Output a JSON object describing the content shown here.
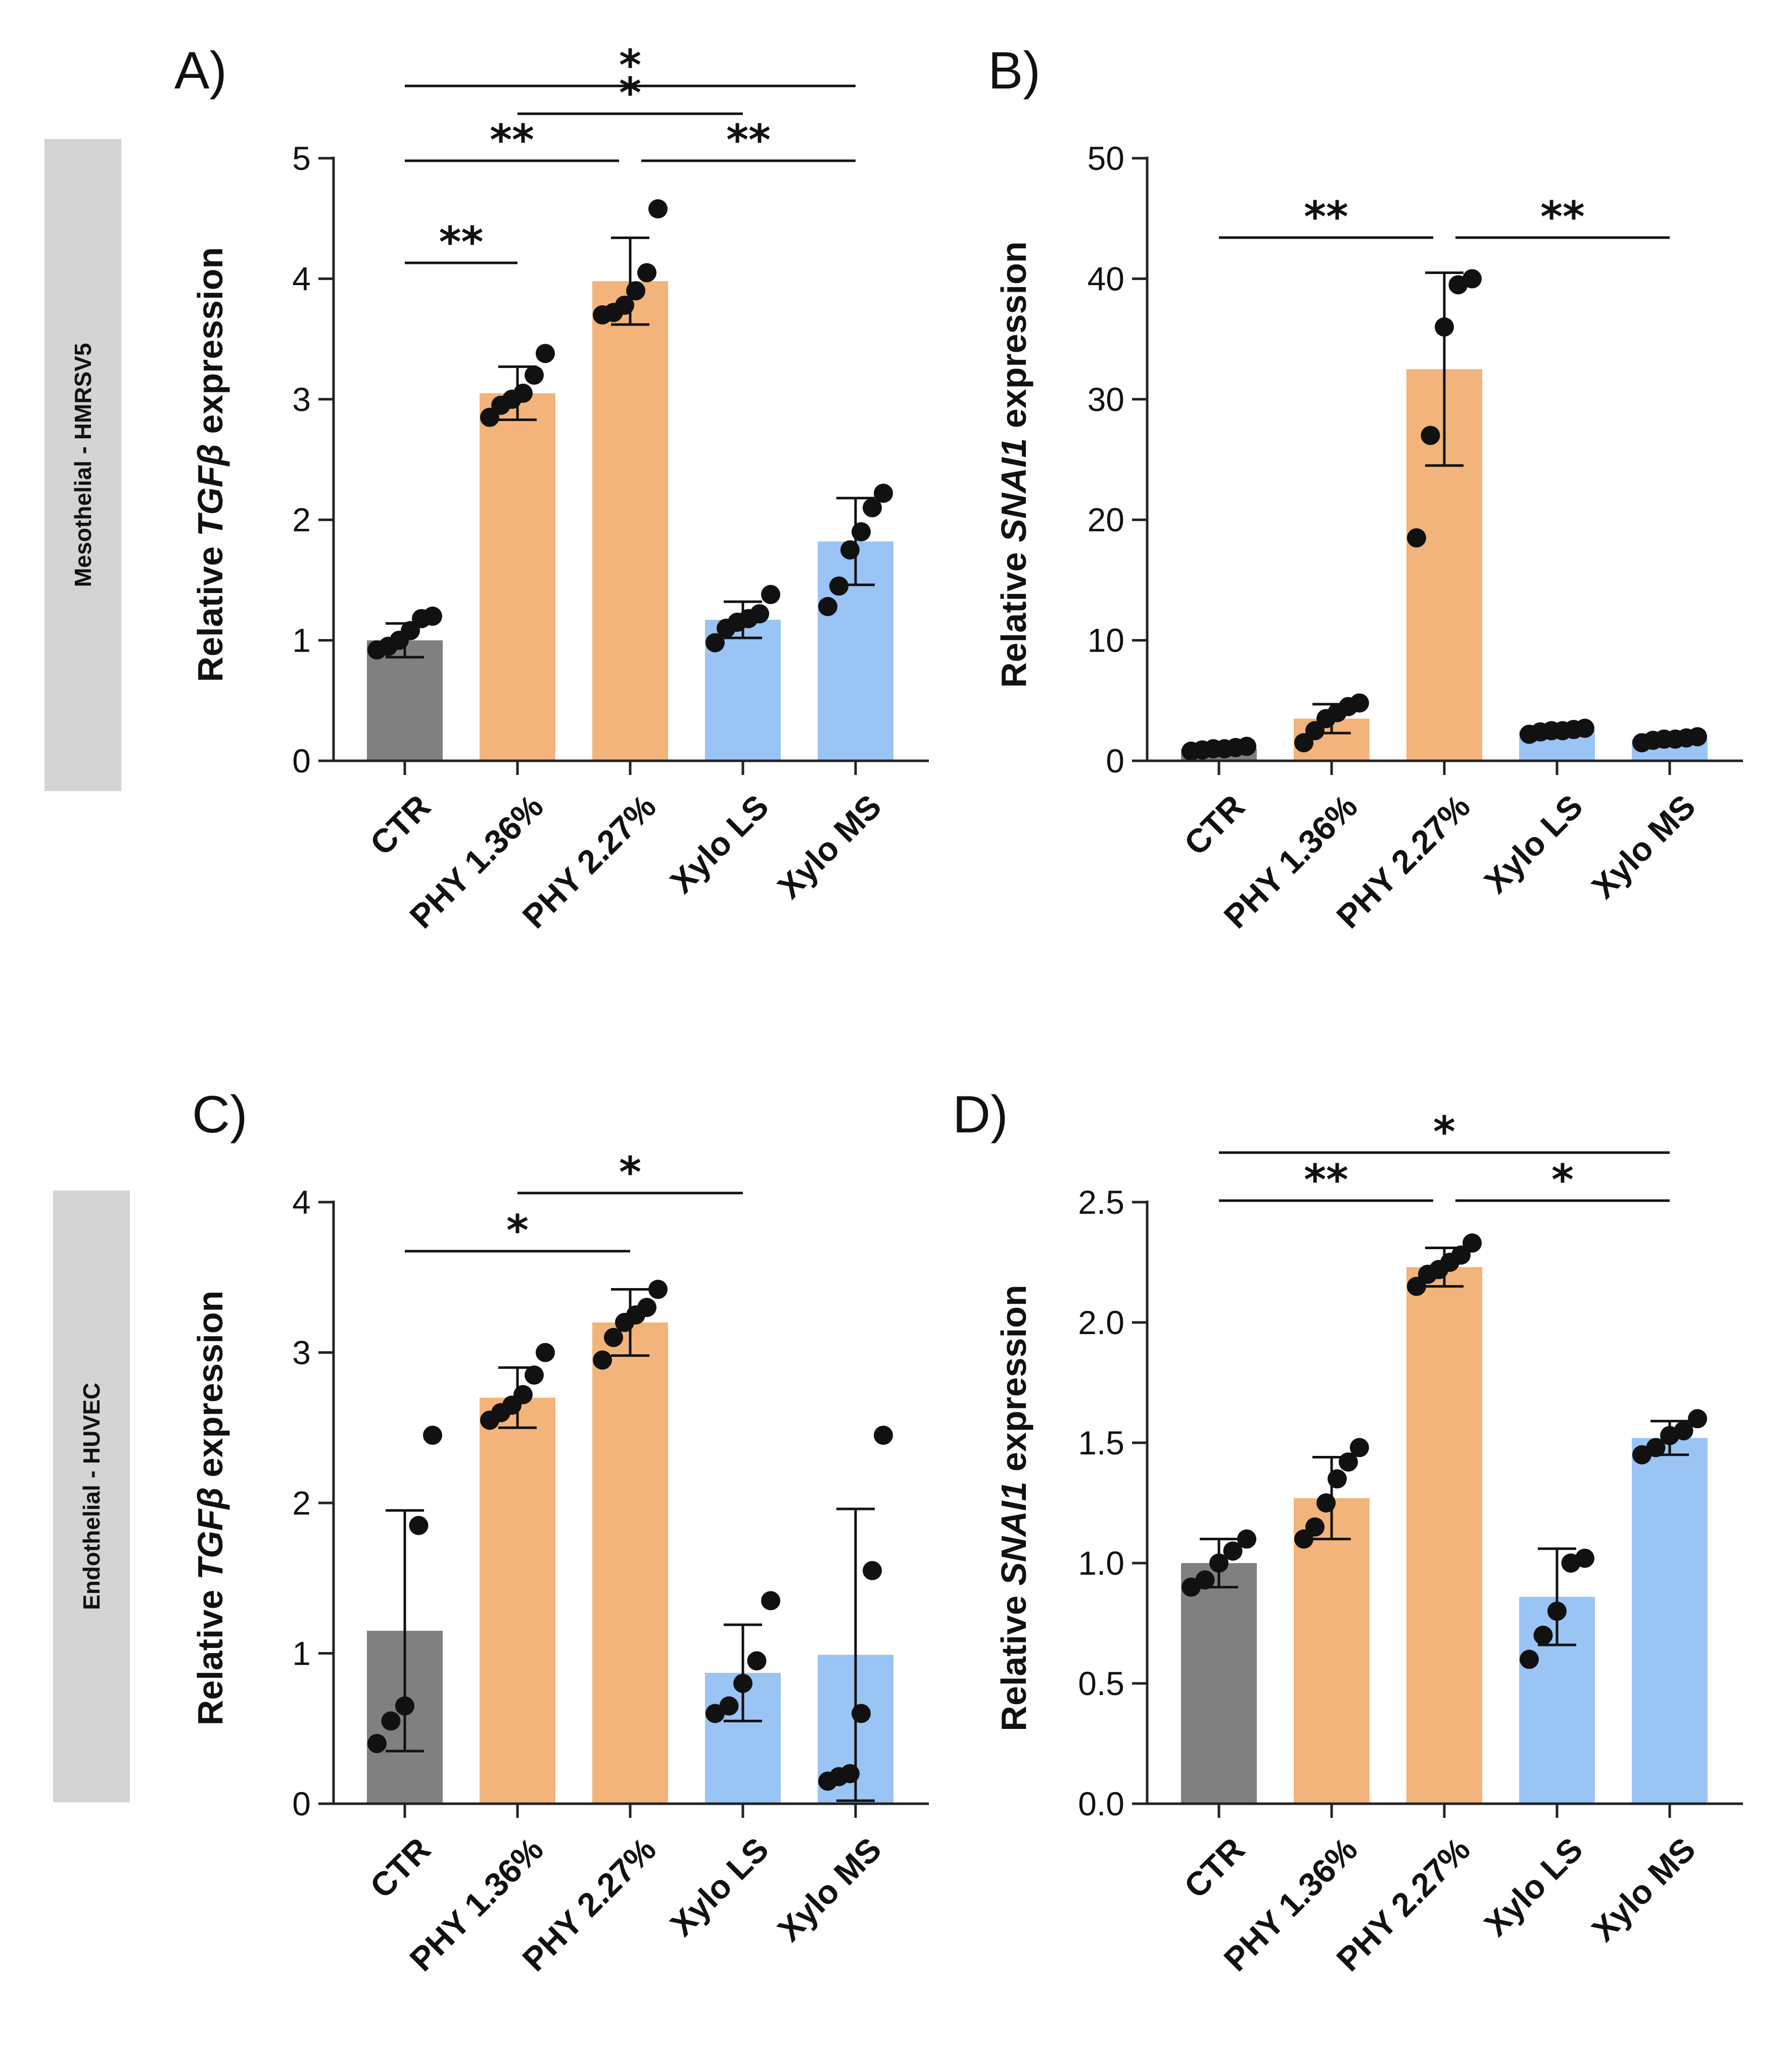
{
  "rows": [
    {
      "label": "Mesothelial - HMRSV5"
    },
    {
      "label": "Endothelial - HUVEC"
    }
  ],
  "colors": {
    "CTR": "#808080",
    "PHY": "#f2b47a",
    "Xylo": "#9ac4f4"
  },
  "chart_data": [
    {
      "panel": "A)",
      "type": "bar",
      "categories": [
        "CTR",
        "PHY 1.36%",
        "PHY 2.27%",
        "Xylo LS",
        "Xylo MS"
      ],
      "values": [
        1.0,
        3.05,
        3.98,
        1.17,
        1.82
      ],
      "sd": [
        0.14,
        0.22,
        0.36,
        0.15,
        0.36
      ],
      "points": [
        [
          0.92,
          0.95,
          1.0,
          1.08,
          1.18,
          1.2
        ],
        [
          2.85,
          2.95,
          3.0,
          3.05,
          3.2,
          3.38
        ],
        [
          3.7,
          3.72,
          3.78,
          3.9,
          4.05,
          4.58
        ],
        [
          0.98,
          1.1,
          1.15,
          1.18,
          1.22,
          1.38
        ],
        [
          1.28,
          1.45,
          1.75,
          1.9,
          2.1,
          2.22
        ]
      ],
      "ylabel_prefix": "Relative ",
      "ylabel_gene": "TGFβ",
      "ylabel_suffix": " expression",
      "ylim": [
        0,
        5
      ],
      "yticks": [
        "0",
        "1",
        "2",
        "3",
        "4",
        "5"
      ],
      "ytick_values": [
        0,
        1,
        2,
        3,
        4,
        5
      ],
      "significance": [
        {
          "from": 0,
          "to": 4,
          "label": "*"
        },
        {
          "from": 1,
          "to": 3,
          "label": "*"
        },
        {
          "from": 0,
          "to": 2,
          "label": "**"
        },
        {
          "from": 2,
          "to": 4,
          "label": "**"
        },
        {
          "from": 0,
          "to": 1,
          "label": "**"
        }
      ]
    },
    {
      "panel": "B)",
      "type": "bar",
      "categories": [
        "CTR",
        "PHY 1.36%",
        "PHY 2.27%",
        "Xylo LS",
        "Xylo MS"
      ],
      "values": [
        1.0,
        3.5,
        32.5,
        2.5,
        1.8
      ],
      "sd": [
        0.3,
        1.2,
        8.0,
        0.3,
        0.3
      ],
      "points": [
        [
          0.8,
          0.9,
          1.0,
          1.0,
          1.1,
          1.2
        ],
        [
          1.5,
          2.5,
          3.5,
          4.0,
          4.5,
          4.8
        ],
        [
          18.5,
          27.0,
          36.0,
          39.5,
          40.0
        ],
        [
          2.2,
          2.4,
          2.5,
          2.5,
          2.6,
          2.7
        ],
        [
          1.5,
          1.7,
          1.8,
          1.8,
          1.9,
          2.0
        ]
      ],
      "ylabel_prefix": "Relative ",
      "ylabel_gene": "SNAI1",
      "ylabel_suffix": " expression",
      "ylim": [
        0,
        50
      ],
      "yticks": [
        "0",
        "10",
        "20",
        "30",
        "40",
        "50"
      ],
      "ytick_values": [
        0,
        10,
        20,
        30,
        40,
        50
      ],
      "significance": [
        {
          "from": 0,
          "to": 2,
          "label": "**"
        },
        {
          "from": 2,
          "to": 4,
          "label": "**"
        }
      ]
    },
    {
      "panel": "C)",
      "type": "bar",
      "categories": [
        "CTR",
        "PHY 1.36%",
        "PHY 2.27%",
        "Xylo LS",
        "Xylo MS"
      ],
      "values": [
        1.15,
        2.7,
        3.2,
        0.87,
        0.99
      ],
      "sd": [
        0.8,
        0.2,
        0.22,
        0.32,
        0.97
      ],
      "points": [
        [
          0.4,
          0.55,
          0.65,
          1.85,
          2.45
        ],
        [
          2.55,
          2.6,
          2.65,
          2.72,
          2.85,
          3.0
        ],
        [
          2.95,
          3.1,
          3.2,
          3.25,
          3.3,
          3.42
        ],
        [
          0.6,
          0.65,
          0.8,
          0.95,
          1.35
        ],
        [
          0.15,
          0.18,
          0.2,
          0.6,
          1.55,
          2.45
        ]
      ],
      "ylabel_prefix": "Relative ",
      "ylabel_gene": "TGFβ",
      "ylabel_suffix": " expression",
      "ylim": [
        0,
        4
      ],
      "yticks": [
        "0",
        "1",
        "2",
        "3",
        "4"
      ],
      "ytick_values": [
        0,
        1,
        2,
        3,
        4
      ],
      "significance": [
        {
          "from": 1,
          "to": 3,
          "label": "*"
        },
        {
          "from": 0,
          "to": 2,
          "label": "*"
        }
      ]
    },
    {
      "panel": "D)",
      "type": "bar",
      "categories": [
        "CTR",
        "PHY 1.36%",
        "PHY 2.27%",
        "Xylo LS",
        "Xylo MS"
      ],
      "values": [
        1.0,
        1.27,
        2.23,
        0.86,
        1.52
      ],
      "sd": [
        0.1,
        0.17,
        0.08,
        0.2,
        0.07
      ],
      "points": [
        [
          0.9,
          0.93,
          1.0,
          1.05,
          1.1
        ],
        [
          1.1,
          1.15,
          1.25,
          1.35,
          1.42,
          1.48
        ],
        [
          2.15,
          2.2,
          2.22,
          2.25,
          2.28,
          2.33
        ],
        [
          0.6,
          0.7,
          0.8,
          1.0,
          1.02
        ],
        [
          1.45,
          1.48,
          1.53,
          1.55,
          1.6
        ]
      ],
      "ylabel_prefix": "Relative ",
      "ylabel_gene": "SNAI1",
      "ylabel_suffix": " expression",
      "ylim": [
        0,
        2.5
      ],
      "yticks": [
        "0.0",
        "0.5",
        "1.0",
        "1.5",
        "2.0",
        "2.5"
      ],
      "ytick_values": [
        0,
        0.5,
        1.0,
        1.5,
        2.0,
        2.5
      ],
      "significance": [
        {
          "from": 0,
          "to": 4,
          "label": "*"
        },
        {
          "from": 0,
          "to": 2,
          "label": "**"
        },
        {
          "from": 2,
          "to": 4,
          "label": "*"
        }
      ]
    }
  ]
}
